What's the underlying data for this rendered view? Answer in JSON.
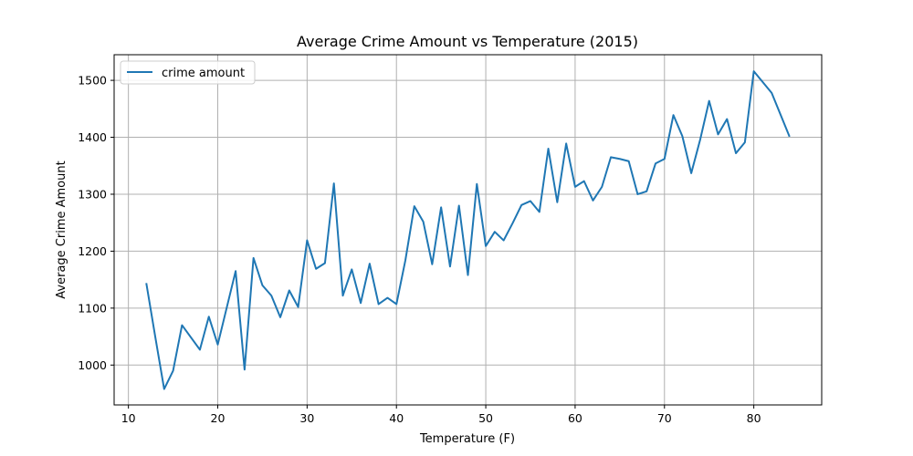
{
  "chart_data": {
    "type": "line",
    "title": "Average Crime Amount vs Temperature (2015)",
    "xlabel": "Temperature (F)",
    "ylabel": "Average Crime Amount",
    "xlim": [
      8.4,
      87.6
    ],
    "ylim": [
      930,
      1545
    ],
    "xticks": [
      10,
      20,
      30,
      40,
      50,
      60,
      70,
      80
    ],
    "yticks": [
      1000,
      1100,
      1200,
      1300,
      1400,
      1500
    ],
    "grid": true,
    "legend_position": "upper left",
    "colors": {
      "series": "#1f77b4",
      "grid": "#b0b0b0",
      "axes": "#000000"
    },
    "series": [
      {
        "name": "crime amount",
        "x": [
          12,
          13,
          14,
          15,
          16,
          18,
          19,
          20,
          22,
          23,
          24,
          25,
          26,
          27,
          28,
          29,
          30,
          31,
          32,
          33,
          34,
          35,
          36,
          37,
          38,
          39,
          40,
          41,
          42,
          43,
          44,
          45,
          46,
          47,
          48,
          49,
          50,
          51,
          52,
          53,
          54,
          55,
          56,
          57,
          58,
          59,
          60,
          61,
          62,
          63,
          64,
          65,
          66,
          67,
          68,
          69,
          70,
          71,
          72,
          73,
          74,
          75,
          76,
          77,
          78,
          79,
          80,
          82,
          84
        ],
        "values": [
          1144,
          1050,
          958,
          990,
          1070,
          1027,
          1085,
          1036,
          1165,
          992,
          1188,
          1140,
          1122,
          1084,
          1131,
          1102,
          1219,
          1169,
          1179,
          1319,
          1122,
          1168,
          1109,
          1178,
          1107,
          1118,
          1107,
          1184,
          1279,
          1252,
          1177,
          1277,
          1173,
          1280,
          1158,
          1318,
          1209,
          1234,
          1219,
          1249,
          1281,
          1288,
          1269,
          1380,
          1286,
          1389,
          1313,
          1323,
          1289,
          1313,
          1365,
          1362,
          1358,
          1300,
          1305,
          1354,
          1362,
          1439,
          1402,
          1337,
          1396,
          1464,
          1405,
          1432,
          1372,
          1391,
          1516,
          1478,
          1401
        ]
      }
    ]
  }
}
